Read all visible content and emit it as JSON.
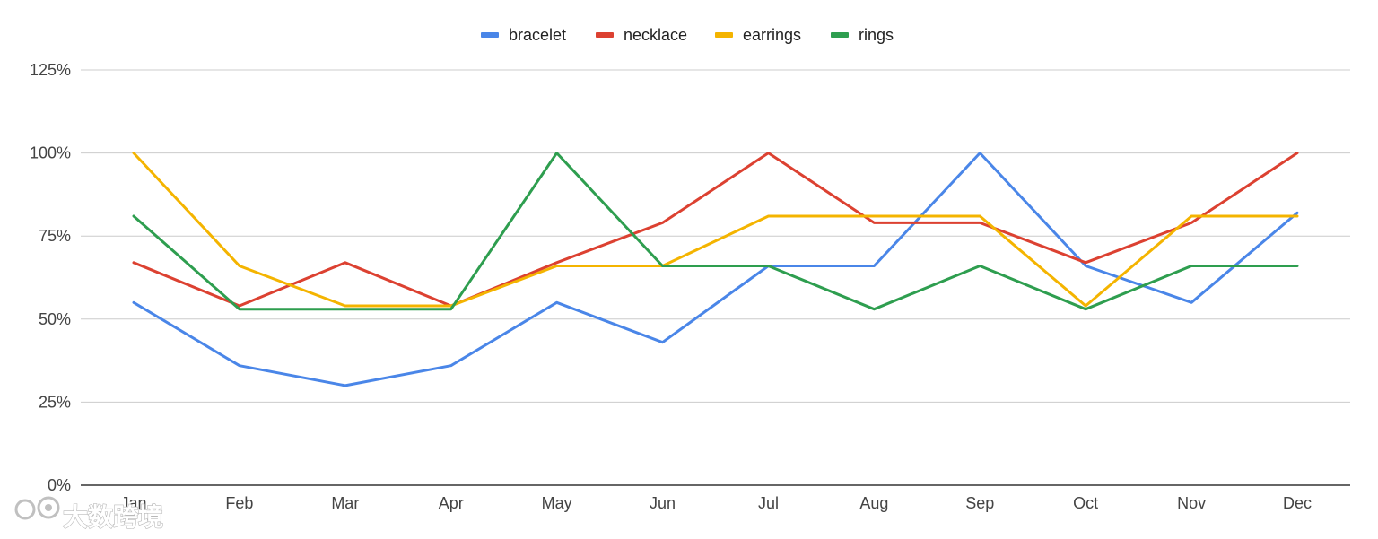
{
  "chart_data": {
    "type": "line",
    "categories": [
      "Jan",
      "Feb",
      "Mar",
      "Apr",
      "May",
      "Jun",
      "Jul",
      "Aug",
      "Sep",
      "Oct",
      "Nov",
      "Dec"
    ],
    "ylim": [
      0,
      1.25
    ],
    "yticks": [
      0,
      0.25,
      0.5,
      0.75,
      1.0,
      1.25
    ],
    "ytick_labels": [
      "0%",
      "25%",
      "50%",
      "75%",
      "100%",
      "125%"
    ],
    "grid": true,
    "legend_position": "top-center",
    "series": [
      {
        "name": "bracelet",
        "color": "#4a86e8",
        "values": [
          0.55,
          0.36,
          0.3,
          0.36,
          0.55,
          0.43,
          0.66,
          0.66,
          1.0,
          0.66,
          0.55,
          0.82
        ]
      },
      {
        "name": "necklace",
        "color": "#dc4131",
        "values": [
          0.67,
          0.54,
          0.67,
          0.54,
          0.67,
          0.79,
          1.0,
          0.79,
          0.79,
          0.67,
          0.79,
          1.0
        ]
      },
      {
        "name": "earrings",
        "color": "#f4b400",
        "values": [
          1.0,
          0.66,
          0.54,
          0.54,
          0.66,
          0.66,
          0.81,
          0.81,
          0.81,
          0.54,
          0.81,
          0.81
        ]
      },
      {
        "name": "rings",
        "color": "#2e9e4f",
        "values": [
          0.81,
          0.53,
          0.53,
          0.53,
          1.0,
          0.66,
          0.66,
          0.53,
          0.66,
          0.53,
          0.66,
          0.66
        ]
      }
    ]
  },
  "watermark": {
    "text": "大数跨境"
  }
}
